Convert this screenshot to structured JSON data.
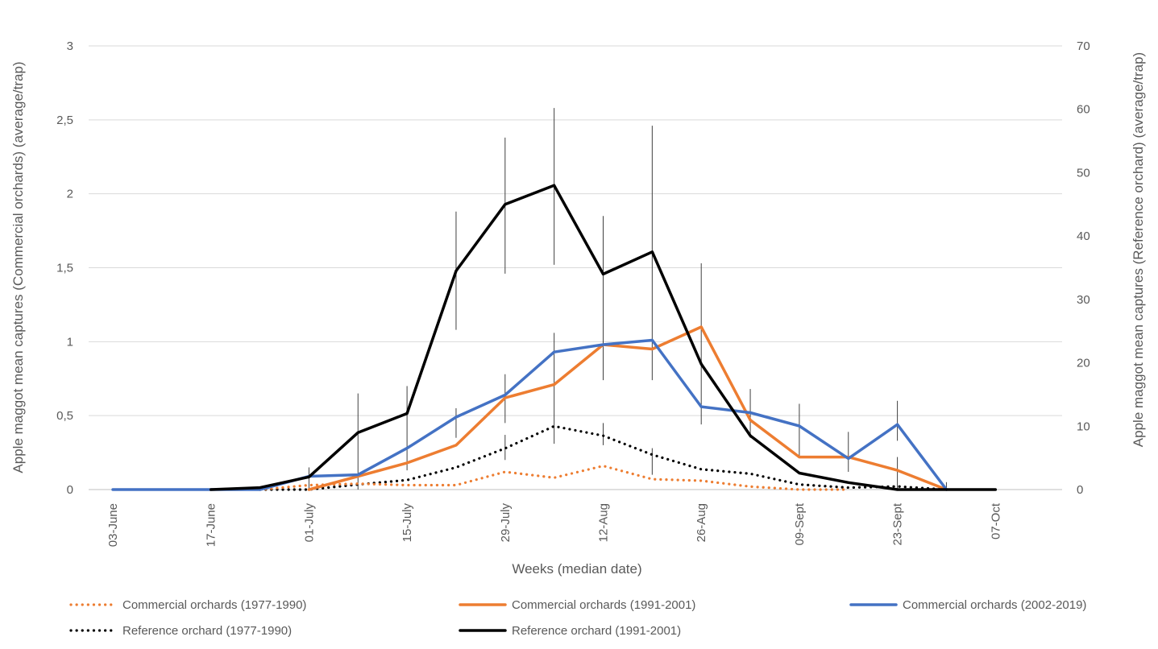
{
  "chart_data": {
    "type": "line",
    "xlabel": "Weeks (median date)",
    "ylabel_left": "Apple maggot mean captures  (Commercial orchards) (average/trap)",
    "ylabel_right": "Apple maggot mean captures  (Reference orchard) (average/trap)",
    "ylim_left": [
      0,
      3
    ],
    "ylim_right": [
      0,
      70
    ],
    "yticks_left": [
      "0",
      "0,5",
      "1",
      "1,5",
      "2",
      "2,5",
      "3"
    ],
    "yticks_right": [
      "0",
      "10",
      "20",
      "30",
      "40",
      "50",
      "60",
      "70"
    ],
    "gridlines": true,
    "x_tick_labels": [
      {
        "index": 0,
        "label": "03-June"
      },
      {
        "index": 2,
        "label": "17-June"
      },
      {
        "index": 4,
        "label": "01-July"
      },
      {
        "index": 6,
        "label": "15-July"
      },
      {
        "index": 8,
        "label": "29-July"
      },
      {
        "index": 10,
        "label": "12-Aug"
      },
      {
        "index": 12,
        "label": "26-Aug"
      },
      {
        "index": 14,
        "label": "09-Sept"
      },
      {
        "index": 16,
        "label": "23-Sept"
      },
      {
        "index": 18,
        "label": "07-Oct"
      }
    ],
    "x_count": 19,
    "series": [
      {
        "name": "Commercial orchards (1977-1990)",
        "axis": "left",
        "color": "#ED7D31",
        "style": "dotted",
        "start": 3,
        "values": [
          0.0,
          0.03,
          0.04,
          0.03,
          0.03,
          0.12,
          0.08,
          0.16,
          0.07,
          0.06,
          0.02,
          0.0,
          0.0
        ]
      },
      {
        "name": "Commercial orchards (1991-2001)",
        "axis": "left",
        "color": "#ED7D31",
        "style": "solid",
        "start": 4,
        "values": [
          0.0,
          0.09,
          0.18,
          0.3,
          0.62,
          0.71,
          0.98,
          0.95,
          1.1,
          0.47,
          0.22,
          0.22,
          0.13,
          0.0
        ]
      },
      {
        "name": "Commercial orchards (2002-2019)",
        "axis": "left",
        "color": "#4472C4",
        "style": "solid",
        "start": 0,
        "values": [
          0.0,
          0.0,
          0.0,
          0.0,
          0.09,
          0.1,
          0.28,
          0.49,
          0.64,
          0.93,
          0.98,
          1.01,
          0.56,
          0.52,
          0.43,
          0.21,
          0.44,
          0.0
        ]
      },
      {
        "name": "Reference orchard (1977-1990)",
        "axis": "right",
        "color": "#000000",
        "style": "dotted",
        "start": 3,
        "values": [
          0.0,
          0.0,
          0.8,
          1.5,
          3.5,
          6.5,
          10.0,
          8.5,
          5.5,
          3.2,
          2.5,
          0.8,
          0.3,
          0.5,
          0.0
        ]
      },
      {
        "name": "Reference orchard (1991-2001)",
        "axis": "right",
        "color": "#000000",
        "style": "solid",
        "start": 2,
        "values": [
          0.0,
          0.3,
          2.0,
          9.0,
          12.0,
          34.5,
          45.0,
          48.0,
          34.0,
          37.5,
          19.8,
          8.5,
          2.6,
          1.1,
          0.0,
          0.0,
          0.0
        ]
      }
    ],
    "error_bars": [
      {
        "x": 4,
        "axis": "left",
        "low": 0.0,
        "high": 0.15
      },
      {
        "x": 5,
        "axis": "left",
        "low": 0.0,
        "high": 0.65
      },
      {
        "x": 6,
        "axis": "left",
        "low": 0.13,
        "high": 0.7
      },
      {
        "x": 7,
        "axis": "left",
        "low": 1.08,
        "high": 1.88
      },
      {
        "x": 8,
        "axis": "left",
        "low": 1.46,
        "high": 2.38
      },
      {
        "x": 9,
        "axis": "left",
        "low": 1.52,
        "high": 2.58
      },
      {
        "x": 10,
        "axis": "left",
        "low": 0.74,
        "high": 1.85
      },
      {
        "x": 11,
        "axis": "left",
        "low": 0.74,
        "high": 2.46
      },
      {
        "x": 12,
        "axis": "left",
        "low": 0.44,
        "high": 1.53
      },
      {
        "x": 7,
        "axis": "left",
        "low": 0.35,
        "high": 0.55
      },
      {
        "x": 8,
        "axis": "left",
        "low": 0.45,
        "high": 0.78
      },
      {
        "x": 9,
        "axis": "left",
        "low": 0.31,
        "high": 1.06
      },
      {
        "x": 10,
        "axis": "left",
        "low": 0.3,
        "high": 0.45
      },
      {
        "x": 11,
        "axis": "left",
        "low": 0.1,
        "high": 0.28
      },
      {
        "x": 8,
        "axis": "left",
        "low": 0.2,
        "high": 0.37
      },
      {
        "x": 13,
        "axis": "left",
        "low": 0.35,
        "high": 0.68
      },
      {
        "x": 14,
        "axis": "left",
        "low": 0.22,
        "high": 0.58
      },
      {
        "x": 15,
        "axis": "left",
        "low": 0.12,
        "high": 0.39
      },
      {
        "x": 16,
        "axis": "left",
        "low": 0.33,
        "high": 0.6
      },
      {
        "x": 16,
        "axis": "left",
        "low": 0.0,
        "high": 0.22
      },
      {
        "x": 17,
        "axis": "left",
        "low": 0.0,
        "high": 0.05
      }
    ]
  }
}
